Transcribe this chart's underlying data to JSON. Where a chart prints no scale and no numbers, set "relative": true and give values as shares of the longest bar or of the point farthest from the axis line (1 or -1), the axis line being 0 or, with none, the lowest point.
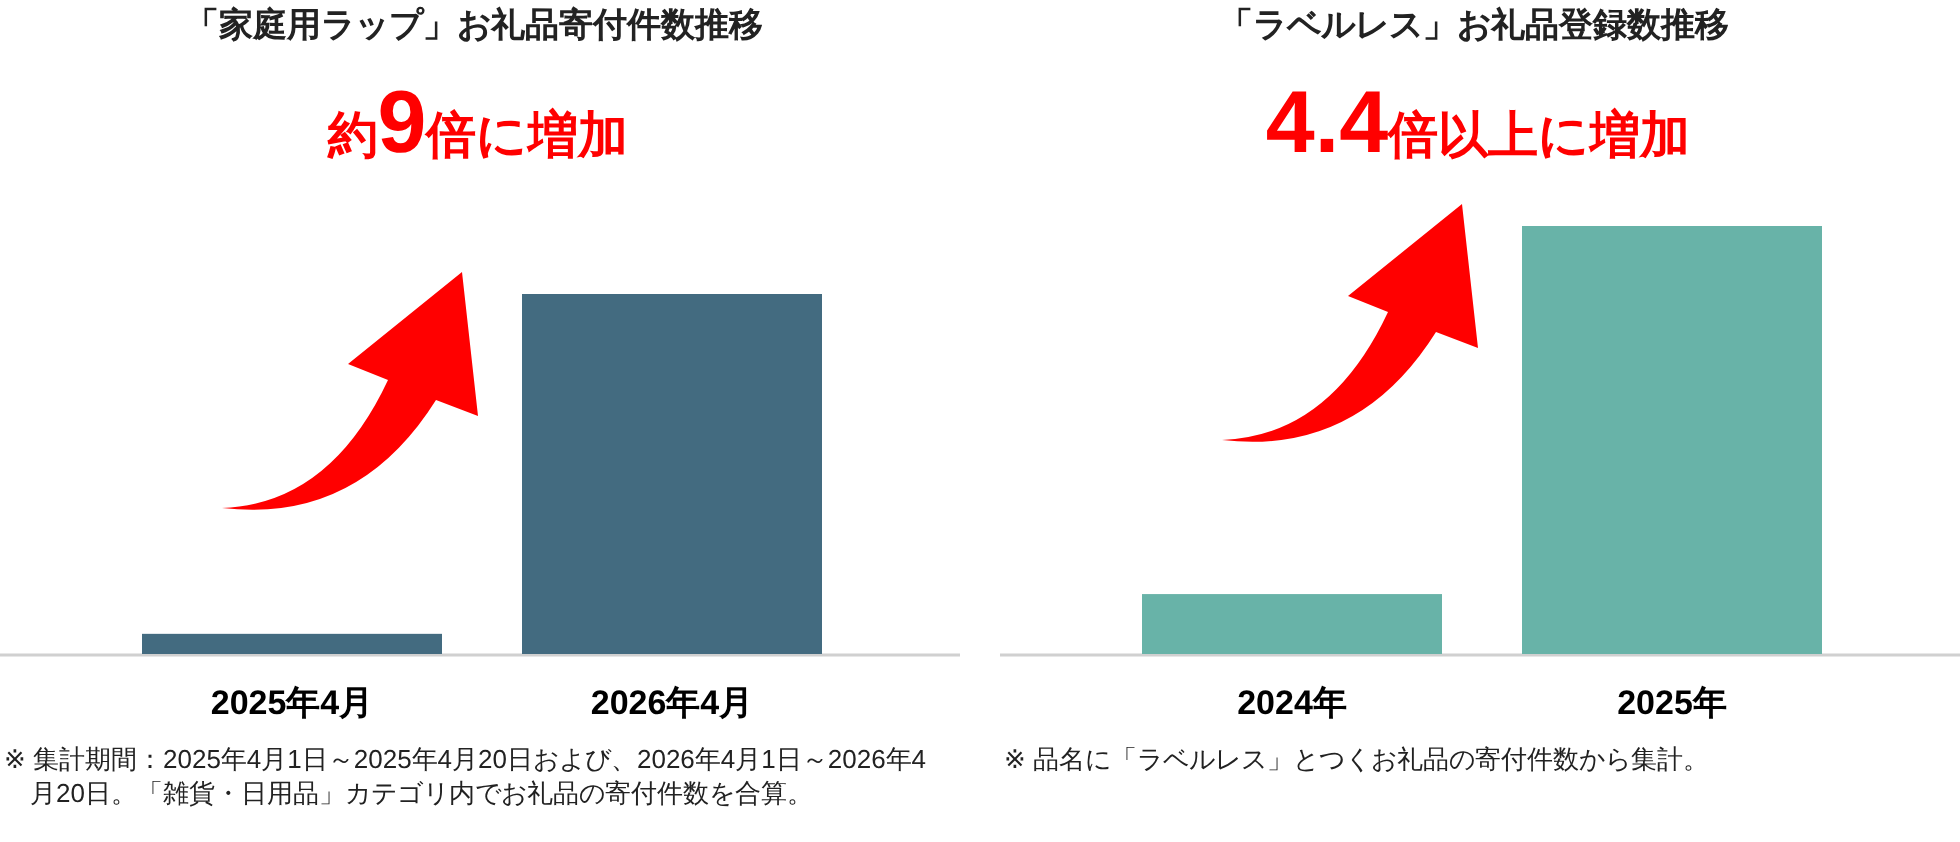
{
  "chart_data": [
    {
      "type": "bar",
      "title": "「家庭用ラップ」お礼品寄付件数推移",
      "categories": [
        "2025年4月",
        "2026年4月"
      ],
      "values": [
        0.056,
        1
      ],
      "color": "#436b80",
      "relative": true,
      "annotations": [
        "約9倍に増加",
        "※ 集計期間：2025年4月1日～2025年4月20日および、2026年4月1日～2026年4月20日。「雑貨・日用品」カテゴリ内でお礼品の寄付件数を合算。"
      ]
    },
    {
      "type": "bar",
      "title": "「ラベルレス」お礼品登録数推移",
      "categories": [
        "2024年",
        "2025年"
      ],
      "values": [
        0.14,
        1
      ],
      "color": "#68b3a8",
      "relative": true,
      "annotations": [
        "4.4倍以上に増加",
        "※ 品名に「ラベルレス」とつくお礼品の寄付件数から集計。"
      ]
    }
  ]
}
